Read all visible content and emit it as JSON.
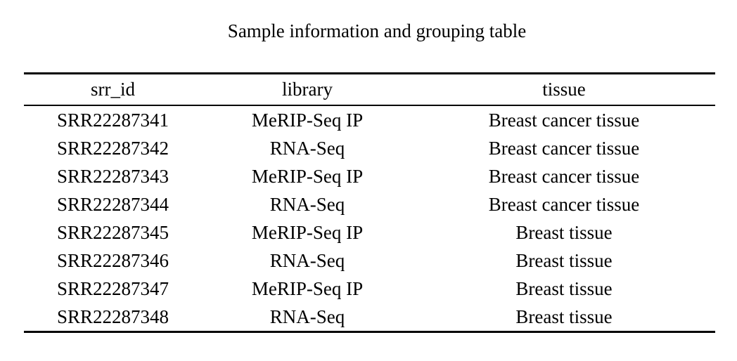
{
  "table": {
    "caption": "Sample information and grouping table",
    "columns": [
      "srr_id",
      "library",
      "tissue"
    ],
    "rows": [
      [
        "SRR22287341",
        "MeRIP-Seq IP",
        "Breast cancer tissue"
      ],
      [
        "SRR22287342",
        "RNA-Seq",
        "Breast cancer tissue"
      ],
      [
        "SRR22287343",
        "MeRIP-Seq IP",
        "Breast cancer tissue"
      ],
      [
        "SRR22287344",
        "RNA-Seq",
        "Breast cancer tissue"
      ],
      [
        "SRR22287345",
        "MeRIP-Seq IP",
        "Breast tissue"
      ],
      [
        "SRR22287346",
        "RNA-Seq",
        "Breast tissue"
      ],
      [
        "SRR22287347",
        "MeRIP-Seq IP",
        "Breast tissue"
      ],
      [
        "SRR22287348",
        "RNA-Seq",
        "Breast tissue"
      ]
    ]
  }
}
